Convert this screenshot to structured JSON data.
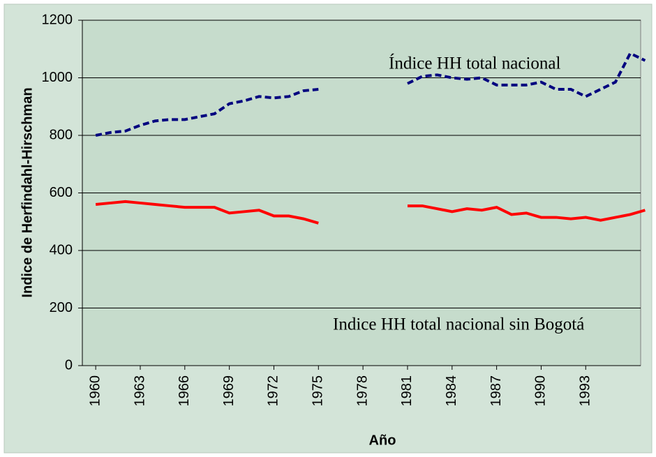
{
  "chart_data": {
    "type": "line",
    "x": [
      1960,
      1961,
      1962,
      1963,
      1964,
      1965,
      1966,
      1967,
      1968,
      1969,
      1970,
      1971,
      1972,
      1973,
      1974,
      1975,
      1976,
      1977,
      1978,
      1979,
      1980,
      1981,
      1982,
      1983,
      1984,
      1985,
      1986,
      1987,
      1988,
      1989,
      1990,
      1991,
      1992,
      1993,
      1994,
      1995,
      1996,
      1997
    ],
    "series": [
      {
        "name": "Índice HH total nacional",
        "color": "#00007f",
        "dashed": true,
        "values": [
          800,
          810,
          815,
          835,
          850,
          855,
          855,
          865,
          875,
          910,
          920,
          935,
          930,
          935,
          955,
          960,
          null,
          null,
          null,
          null,
          null,
          980,
          1005,
          1010,
          1000,
          995,
          1000,
          975,
          975,
          975,
          985,
          960,
          960,
          935,
          960,
          985,
          1085,
          1060
        ]
      },
      {
        "name": "Indice HH total nacional sin Bogotá",
        "color": "#ff0000",
        "dashed": false,
        "values": [
          560,
          565,
          570,
          565,
          560,
          555,
          550,
          550,
          550,
          530,
          535,
          540,
          520,
          520,
          510,
          495,
          null,
          null,
          null,
          null,
          null,
          555,
          555,
          545,
          535,
          545,
          540,
          550,
          525,
          530,
          515,
          515,
          510,
          515,
          505,
          515,
          525,
          540
        ]
      }
    ],
    "xlabel": "Año",
    "ylabel": "Indice de Herfindahl-Hirschman",
    "xlim": [
      1959.1,
      1996.7
    ],
    "xticks": [
      1960,
      1963,
      1966,
      1969,
      1972,
      1975,
      1978,
      1981,
      1984,
      1987,
      1990,
      1993
    ],
    "ylim": [
      0,
      1200
    ],
    "yticks": [
      0,
      200,
      400,
      600,
      800,
      1000,
      1200
    ],
    "grid": true
  }
}
